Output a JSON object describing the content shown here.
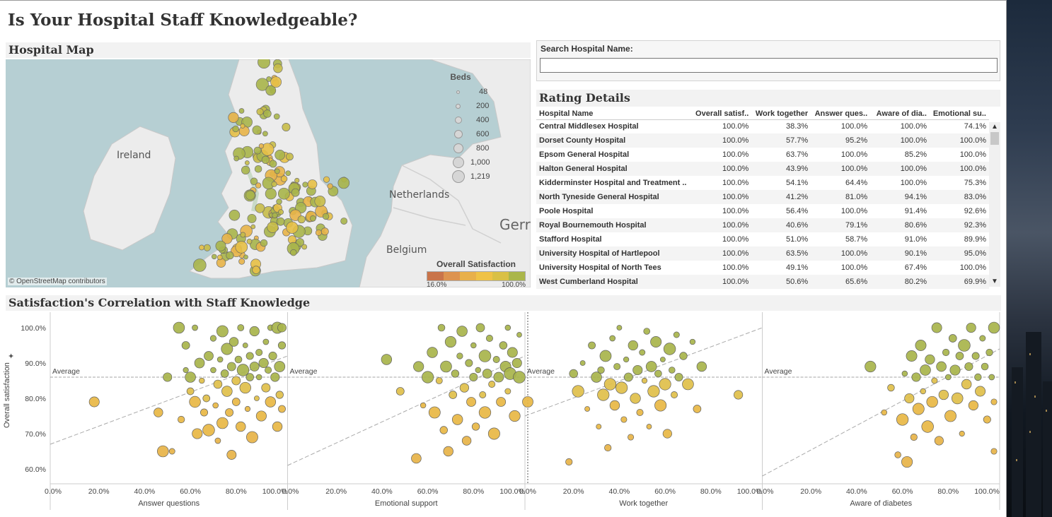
{
  "title": "Is Your Hospital Staff Knowledgeable?",
  "map": {
    "title": "Hospital Map",
    "attribution": "© OpenStreetMap contributors",
    "place_labels": [
      "Ireland",
      "Netherlands",
      "Belgium",
      "Gerr"
    ],
    "beds_legend": {
      "title": "Beds",
      "values": [
        "48",
        "200",
        "400",
        "600",
        "800",
        "1,000",
        "1,219"
      ]
    },
    "satisfaction_legend": {
      "title": "Overall Satisfaction",
      "min": "16.0%",
      "max": "100.0%",
      "colors": [
        "#c9744a",
        "#dd9350",
        "#e8b04a",
        "#efc246",
        "#d9c045",
        "#aab64a"
      ]
    }
  },
  "search": {
    "label": "Search Hospital Name:",
    "value": ""
  },
  "rating": {
    "title": "Rating Details",
    "columns": [
      "Hospital Name",
      "Overall satisf..",
      "Work together",
      "Answer ques..",
      "Aware of dia..",
      "Emotional su.."
    ],
    "rows": [
      [
        "Central Middlesex Hospital",
        "100.0%",
        "38.3%",
        "100.0%",
        "100.0%",
        "74.1%"
      ],
      [
        "Dorset County Hospital",
        "100.0%",
        "57.7%",
        "95.2%",
        "100.0%",
        "100.0%"
      ],
      [
        "Epsom General Hospital",
        "100.0%",
        "63.7%",
        "100.0%",
        "85.2%",
        "100.0%"
      ],
      [
        "Halton General Hospital",
        "100.0%",
        "43.9%",
        "100.0%",
        "100.0%",
        "100.0%"
      ],
      [
        "Kidderminster Hospital and Treatment ..",
        "100.0%",
        "54.1%",
        "64.4%",
        "100.0%",
        "75.3%"
      ],
      [
        "North Tyneside General Hospital",
        "100.0%",
        "41.2%",
        "81.0%",
        "94.1%",
        "83.0%"
      ],
      [
        "Poole Hospital",
        "100.0%",
        "56.4%",
        "100.0%",
        "91.4%",
        "92.6%"
      ],
      [
        "Royal Bournemouth Hospital",
        "100.0%",
        "40.6%",
        "79.1%",
        "80.6%",
        "92.3%"
      ],
      [
        "Stafford Hospital",
        "100.0%",
        "51.0%",
        "58.7%",
        "91.0%",
        "89.9%"
      ],
      [
        "University Hospital of Hartlepool",
        "100.0%",
        "63.5%",
        "100.0%",
        "90.1%",
        "95.0%"
      ],
      [
        "University Hospital of North Tees",
        "100.0%",
        "49.1%",
        "100.0%",
        "67.4%",
        "100.0%"
      ],
      [
        "West Cumberland Hospital",
        "100.0%",
        "50.6%",
        "65.6%",
        "80.2%",
        "69.9%"
      ]
    ]
  },
  "correlation": {
    "title": "Satisfaction's Correlation with Staff Knowledge",
    "ylabel": "Overall satisfaction",
    "average_label": "Average"
  },
  "chart_data": [
    {
      "type": "scatter",
      "xlabel": "Answer questions",
      "ylabel": "Overall satisfaction",
      "xlim": [
        0,
        100
      ],
      "ylim": [
        58,
        100
      ],
      "xticks": [
        "0.0%",
        "20.0%",
        "40.0%",
        "60.0%",
        "80.0%",
        "100.0%"
      ],
      "yticks": [
        "100.0%",
        "90.0%",
        "80.0%",
        "70.0%",
        "60.0%"
      ],
      "average_y": 86,
      "trend": [
        [
          0,
          67
        ],
        [
          100,
          92
        ]
      ],
      "points": [
        [
          18,
          79
        ],
        [
          46,
          76
        ],
        [
          48,
          65
        ],
        [
          50,
          86
        ],
        [
          52,
          65
        ],
        [
          55,
          100
        ],
        [
          56,
          74
        ],
        [
          58,
          88
        ],
        [
          58,
          95
        ],
        [
          60,
          82
        ],
        [
          60,
          86
        ],
        [
          62,
          79
        ],
        [
          62,
          100
        ],
        [
          63,
          70
        ],
        [
          64,
          90
        ],
        [
          65,
          85
        ],
        [
          66,
          76
        ],
        [
          67,
          80
        ],
        [
          68,
          92
        ],
        [
          68,
          71
        ],
        [
          70,
          88
        ],
        [
          70,
          97
        ],
        [
          71,
          78
        ],
        [
          72,
          84
        ],
        [
          72,
          68
        ],
        [
          73,
          91
        ],
        [
          74,
          99
        ],
        [
          74,
          73
        ],
        [
          75,
          87
        ],
        [
          76,
          82
        ],
        [
          76,
          94
        ],
        [
          77,
          76
        ],
        [
          78,
          89
        ],
        [
          78,
          64
        ],
        [
          79,
          96
        ],
        [
          80,
          85
        ],
        [
          80,
          79
        ],
        [
          81,
          91
        ],
        [
          82,
          100
        ],
        [
          82,
          72
        ],
        [
          83,
          88
        ],
        [
          84,
          95
        ],
        [
          84,
          83
        ],
        [
          85,
          77
        ],
        [
          86,
          92
        ],
        [
          86,
          86
        ],
        [
          87,
          69
        ],
        [
          88,
          89
        ],
        [
          88,
          99
        ],
        [
          89,
          80
        ],
        [
          90,
          93
        ],
        [
          90,
          86
        ],
        [
          91,
          75
        ],
        [
          92,
          90
        ],
        [
          93,
          96
        ],
        [
          93,
          83
        ],
        [
          94,
          88
        ],
        [
          95,
          100
        ],
        [
          95,
          79
        ],
        [
          96,
          92
        ],
        [
          97,
          86
        ],
        [
          98,
          100
        ],
        [
          98,
          72
        ],
        [
          99,
          89
        ],
        [
          99,
          81
        ],
        [
          100,
          95
        ],
        [
          100,
          77
        ],
        [
          100,
          100
        ]
      ]
    },
    {
      "type": "scatter",
      "xlabel": "Emotional support",
      "ylabel": "Overall satisfaction",
      "xlim": [
        0,
        100
      ],
      "ylim": [
        58,
        100
      ],
      "xticks": [
        "0.0%",
        "20.0%",
        "40.0%",
        "60.0%",
        "80.0%",
        "100.0%"
      ],
      "yticks": [
        "100.0%",
        "90.0%",
        "80.0%",
        "70.0%",
        "60.0%"
      ],
      "average_y": 86,
      "trend": [
        [
          0,
          61
        ],
        [
          100,
          92
        ]
      ],
      "points": [
        [
          42,
          91
        ],
        [
          48,
          82
        ],
        [
          55,
          63
        ],
        [
          56,
          89
        ],
        [
          58,
          78
        ],
        [
          60,
          86
        ],
        [
          62,
          93
        ],
        [
          63,
          76
        ],
        [
          65,
          85
        ],
        [
          66,
          100
        ],
        [
          67,
          71
        ],
        [
          68,
          89
        ],
        [
          69,
          65
        ],
        [
          70,
          96
        ],
        [
          71,
          81
        ],
        [
          72,
          87
        ],
        [
          73,
          74
        ],
        [
          74,
          92
        ],
        [
          75,
          99
        ],
        [
          76,
          83
        ],
        [
          77,
          68
        ],
        [
          78,
          90
        ],
        [
          79,
          79
        ],
        [
          80,
          95
        ],
        [
          80,
          86
        ],
        [
          81,
          72
        ],
        [
          82,
          88
        ],
        [
          83,
          100
        ],
        [
          84,
          81
        ],
        [
          85,
          92
        ],
        [
          85,
          76
        ],
        [
          86,
          87
        ],
        [
          87,
          97
        ],
        [
          88,
          84
        ],
        [
          89,
          70
        ],
        [
          90,
          91
        ],
        [
          91,
          86
        ],
        [
          92,
          79
        ],
        [
          93,
          95
        ],
        [
          94,
          89
        ],
        [
          95,
          100
        ],
        [
          95,
          82
        ],
        [
          96,
          87
        ],
        [
          97,
          93
        ],
        [
          98,
          75
        ],
        [
          99,
          90
        ],
        [
          100,
          86
        ],
        [
          100,
          98
        ]
      ]
    },
    {
      "type": "scatter",
      "xlabel": "Work together",
      "ylabel": "Overall satisfaction",
      "xlim": [
        0,
        100
      ],
      "ylim": [
        58,
        100
      ],
      "xticks": [
        "0.0%",
        "20.0%",
        "40.0%",
        "60.0%",
        "80.0%",
        "100.0%"
      ],
      "yticks": [
        "100.0%",
        "90.0%",
        "80.0%",
        "70.0%",
        "60.0%"
      ],
      "average_y": 86,
      "trend": [
        [
          0,
          75
        ],
        [
          100,
          100
        ]
      ],
      "points": [
        [
          0,
          79
        ],
        [
          18,
          62
        ],
        [
          20,
          87
        ],
        [
          22,
          82
        ],
        [
          24,
          90
        ],
        [
          26,
          77
        ],
        [
          28,
          95
        ],
        [
          30,
          86
        ],
        [
          31,
          72
        ],
        [
          32,
          88
        ],
        [
          33,
          81
        ],
        [
          34,
          92
        ],
        [
          35,
          66
        ],
        [
          36,
          84
        ],
        [
          37,
          97
        ],
        [
          38,
          78
        ],
        [
          39,
          89
        ],
        [
          40,
          100
        ],
        [
          41,
          83
        ],
        [
          42,
          74
        ],
        [
          43,
          91
        ],
        [
          44,
          86
        ],
        [
          45,
          69
        ],
        [
          46,
          95
        ],
        [
          47,
          80
        ],
        [
          48,
          88
        ],
        [
          49,
          76
        ],
        [
          50,
          93
        ],
        [
          51,
          85
        ],
        [
          52,
          99
        ],
        [
          53,
          72
        ],
        [
          54,
          89
        ],
        [
          55,
          82
        ],
        [
          56,
          96
        ],
        [
          57,
          87
        ],
        [
          58,
          78
        ],
        [
          59,
          91
        ],
        [
          60,
          84
        ],
        [
          61,
          70
        ],
        [
          62,
          94
        ],
        [
          63,
          88
        ],
        [
          64,
          81
        ],
        [
          65,
          98
        ],
        [
          66,
          86
        ],
        [
          68,
          92
        ],
        [
          70,
          84
        ],
        [
          72,
          96
        ],
        [
          74,
          77
        ],
        [
          76,
          89
        ],
        [
          92,
          81
        ]
      ]
    },
    {
      "type": "scatter",
      "xlabel": "Aware of diabetes",
      "ylabel": "Overall satisfaction",
      "xlim": [
        0,
        100
      ],
      "ylim": [
        58,
        100
      ],
      "xticks": [
        "0.0%",
        "20.0%",
        "40.0%",
        "60.0%",
        "80.0%",
        "100.0%"
      ],
      "yticks": [
        "100.0%",
        "90.0%",
        "80.0%",
        "70.0%",
        "60.0%"
      ],
      "average_y": 86,
      "trend": [
        [
          0,
          58
        ],
        [
          100,
          94
        ]
      ],
      "points": [
        [
          46,
          89
        ],
        [
          52,
          76
        ],
        [
          55,
          83
        ],
        [
          58,
          64
        ],
        [
          60,
          74
        ],
        [
          61,
          87
        ],
        [
          62,
          62
        ],
        [
          63,
          80
        ],
        [
          64,
          92
        ],
        [
          65,
          69
        ],
        [
          66,
          86
        ],
        [
          67,
          77
        ],
        [
          68,
          95
        ],
        [
          69,
          82
        ],
        [
          70,
          88
        ],
        [
          71,
          72
        ],
        [
          72,
          91
        ],
        [
          73,
          79
        ],
        [
          74,
          85
        ],
        [
          75,
          100
        ],
        [
          76,
          68
        ],
        [
          77,
          89
        ],
        [
          78,
          81
        ],
        [
          79,
          93
        ],
        [
          80,
          86
        ],
        [
          81,
          75
        ],
        [
          82,
          97
        ],
        [
          83,
          88
        ],
        [
          84,
          80
        ],
        [
          85,
          92
        ],
        [
          86,
          70
        ],
        [
          87,
          95
        ],
        [
          88,
          84
        ],
        [
          89,
          89
        ],
        [
          90,
          100
        ],
        [
          91,
          78
        ],
        [
          92,
          92
        ],
        [
          93,
          86
        ],
        [
          94,
          82
        ],
        [
          95,
          97
        ],
        [
          96,
          89
        ],
        [
          97,
          74
        ],
        [
          98,
          93
        ],
        [
          99,
          86
        ],
        [
          100,
          100
        ],
        [
          100,
          79
        ],
        [
          100,
          65
        ]
      ]
    }
  ]
}
